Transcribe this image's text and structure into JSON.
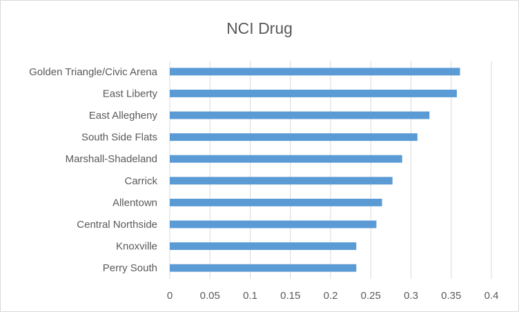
{
  "chart_data": {
    "type": "bar",
    "orientation": "horizontal",
    "title": "NCI Drug",
    "xlabel": "",
    "ylabel": "",
    "categories": [
      "Perry South",
      "Knoxville",
      "Central Northside",
      "Allentown",
      "Carrick",
      "Marshall-Shadeland",
      "South Side Flats",
      "East Allegheny",
      "East Liberty",
      "Golden Triangle/Civic Arena"
    ],
    "values": [
      0.232,
      0.232,
      0.257,
      0.264,
      0.277,
      0.289,
      0.308,
      0.323,
      0.357,
      0.361
    ],
    "xlim": [
      0,
      0.4
    ],
    "x_ticks": [
      "0",
      "0.05",
      "0.1",
      "0.15",
      "0.2",
      "0.25",
      "0.3",
      "0.35",
      "0.4"
    ],
    "grid": "vertical",
    "legend": "none",
    "bar_color": "#5b9bd5",
    "grid_color": "#d9d9d9",
    "text_color": "#595959"
  }
}
